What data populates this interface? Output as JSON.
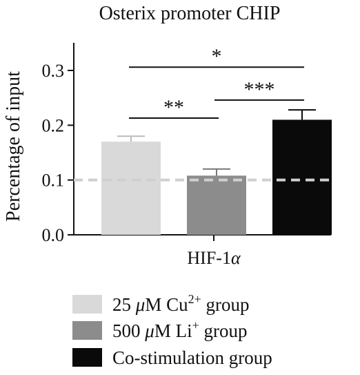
{
  "chart_data": {
    "type": "bar",
    "title": "Osterix promoter CHIP",
    "ylabel": "Percentage of input",
    "xlabel": "",
    "ylim": [
      0,
      0.35
    ],
    "yticks": [
      0.0,
      0.1,
      0.2,
      0.3
    ],
    "ytick_labels": [
      "0.0",
      "0.1",
      "0.2",
      "0.3"
    ],
    "category_label": "HIF-1",
    "category_label_symbol": "α",
    "reference_line": 0.1,
    "legend_position": "bottom-left",
    "grid": false,
    "series": [
      {
        "name": "25 μM Cu2+ group",
        "legend_prefix": "25 ",
        "legend_unit": "μ",
        "legend_mid": "M Cu",
        "legend_sup": "2+",
        "legend_suffix": " group",
        "value": 0.17,
        "error": 0.01,
        "color": "#d9d9d9",
        "error_color": "#bbbbbb"
      },
      {
        "name": "500 μM Li+ group",
        "legend_prefix": "500 ",
        "legend_unit": "μ",
        "legend_mid": "M Li",
        "legend_sup": "+",
        "legend_suffix": " group",
        "value": 0.108,
        "error": 0.012,
        "color": "#8c8c8c",
        "error_color": "#777777"
      },
      {
        "name": "Co-stimulation group",
        "legend_prefix": "Co-stimulation group",
        "legend_unit": "",
        "legend_mid": "",
        "legend_sup": "",
        "legend_suffix": "",
        "value": 0.21,
        "error": 0.018,
        "color": "#0a0a0a",
        "error_color": "#0a0a0a"
      }
    ],
    "significance": [
      {
        "from": 0,
        "to": 2,
        "label": "*",
        "y": 0.306
      },
      {
        "from": 1,
        "to": 2,
        "label": "***",
        "y": 0.246
      },
      {
        "from": 0,
        "to": 1,
        "label": "**",
        "y": 0.213
      }
    ]
  }
}
